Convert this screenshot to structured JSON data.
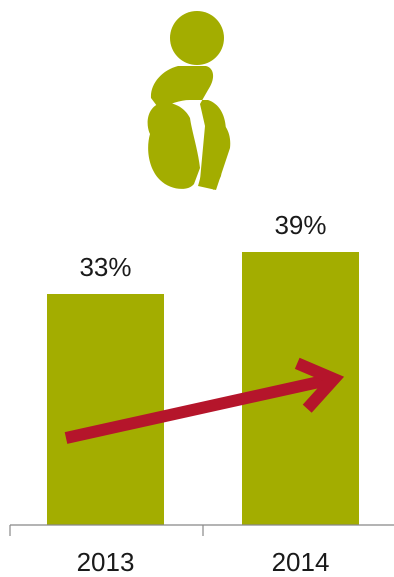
{
  "chart_data": {
    "type": "bar",
    "categories": [
      "2013",
      "2014"
    ],
    "values": [
      33,
      39
    ],
    "value_labels": [
      "33%",
      "39%"
    ],
    "ylim": [
      0,
      40
    ],
    "grid": false,
    "legend": "none",
    "colors": {
      "bar": "#a3ad00",
      "arrow": "#b5152b",
      "icon": "#a3ad00",
      "axis": "#888888"
    },
    "annotations": {
      "icon": "pregnant-woman-icon",
      "trend_arrow": "up"
    }
  }
}
